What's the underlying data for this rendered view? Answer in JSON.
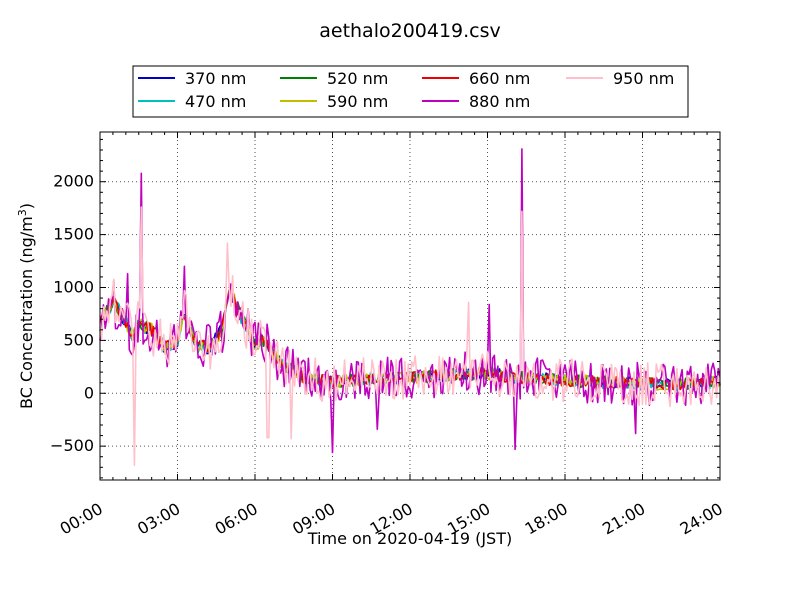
{
  "chart_data": {
    "type": "line",
    "title": "aethalo200419.csv",
    "xlabel": "Time on 2020-04-19 (JST)",
    "ylabel_main": "BC Concentration (ng/m",
    "ylabel_sup": "3",
    "ylabel_end": ")",
    "xlim": [
      "00:00",
      "24:00"
    ],
    "ylim": [
      -820,
      2470
    ],
    "x_ticks": [
      "00:00",
      "03:00",
      "06:00",
      "09:00",
      "12:00",
      "15:00",
      "18:00",
      "21:00",
      "24:00"
    ],
    "y_ticks": [
      -500,
      0,
      500,
      1000,
      1500,
      2000
    ],
    "grid": true,
    "legend_position": "top-outside",
    "series": [
      {
        "name": "370 nm",
        "color": "#0000cc",
        "kind": "pattern"
      },
      {
        "name": "470 nm",
        "color": "#00bfbf",
        "kind": "pattern"
      },
      {
        "name": "520 nm",
        "color": "#007f00",
        "kind": "pattern"
      },
      {
        "name": "590 nm",
        "color": "#bfbf00",
        "kind": "pattern"
      },
      {
        "name": "660 nm",
        "color": "#ee0000",
        "kind": "pattern"
      },
      {
        "name": "880 nm",
        "color": "#bf00bf",
        "kind": "noisy"
      },
      {
        "name": "950 nm",
        "color": "#ffc0cb",
        "kind": "noisy"
      }
    ],
    "base_profile": {
      "x": [
        "00:00",
        "00:30",
        "01:00",
        "01:15",
        "01:30",
        "02:00",
        "02:30",
        "03:00",
        "03:15",
        "03:45",
        "04:15",
        "04:45",
        "05:00",
        "05:30",
        "06:00",
        "06:15",
        "06:45",
        "07:00",
        "07:30",
        "08:00",
        "09:00",
        "10:00",
        "11:00",
        "12:00",
        "13:00",
        "14:00",
        "15:00",
        "16:00",
        "17:00",
        "18:00",
        "19:00",
        "20:00",
        "21:00",
        "22:00",
        "23:00",
        "24:00"
      ],
      "y": [
        650,
        870,
        680,
        520,
        650,
        600,
        420,
        500,
        780,
        450,
        420,
        620,
        1000,
        700,
        450,
        580,
        420,
        300,
        230,
        150,
        120,
        140,
        160,
        170,
        180,
        200,
        210,
        170,
        150,
        140,
        120,
        110,
        100,
        90,
        100,
        120
      ]
    },
    "spikes": [
      {
        "x": "01:35",
        "y": 2080,
        "series": "880 nm"
      },
      {
        "x": "01:35",
        "y": 1760,
        "series": "950 nm"
      },
      {
        "x": "16:20",
        "y": 2310,
        "series": "880 nm"
      },
      {
        "x": "16:20",
        "y": 1720,
        "series": "950 nm"
      },
      {
        "x": "04:55",
        "y": 1420,
        "series": "950 nm"
      },
      {
        "x": "03:15",
        "y": 1200,
        "series": "880 nm"
      },
      {
        "x": "01:05",
        "y": 1130,
        "series": "880 nm"
      },
      {
        "x": "15:05",
        "y": 840,
        "series": "880 nm"
      },
      {
        "x": "14:15",
        "y": 860,
        "series": "950 nm"
      },
      {
        "x": "01:20",
        "y": -680,
        "series": "950 nm"
      },
      {
        "x": "09:00",
        "y": -560,
        "series": "880 nm"
      },
      {
        "x": "16:05",
        "y": -530,
        "series": "880 nm"
      },
      {
        "x": "07:25",
        "y": -430,
        "series": "950 nm"
      },
      {
        "x": "06:30",
        "y": -420,
        "series": "950 nm"
      },
      {
        "x": "20:45",
        "y": -380,
        "series": "880 nm"
      },
      {
        "x": "10:45",
        "y": -340,
        "series": "880 nm"
      }
    ]
  }
}
